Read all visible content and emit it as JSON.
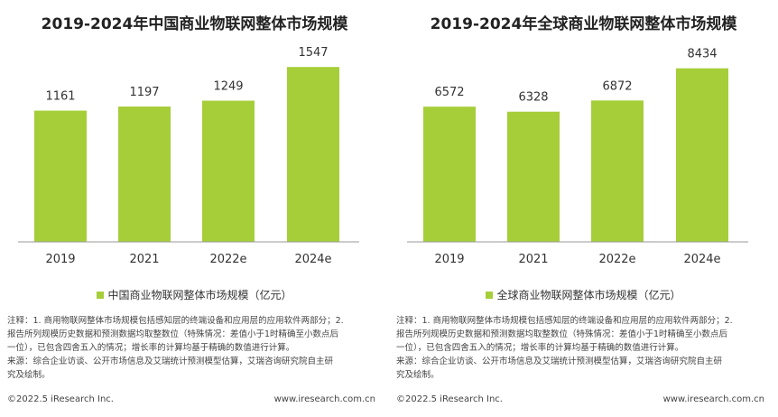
{
  "charts": [
    {
      "title": "2019-2024年中国商业物联网整体市场规模",
      "legend": "中国商业物联网整体市场规模（亿元）",
      "note_lines": [
        "注释：1. 商用物联网整体市场规模包括感知层的终端设备和应用层的应用软件两部分；2.",
        "报告所列规模历史数据和预测数据均取整数位（特殊情况：差值小于1时精确至小数点后",
        "一位），已包含四舍五入的情况；增长率的计算均基于精确的数值进行计算。",
        "来源：综合企业访谈、公开市场信息及艾瑞统计预测模型估算，艾瑞咨询研究院自主研",
        "究及绘制。"
      ],
      "footer": {
        "copyright": "©2022.5 iResearch Inc.",
        "website": "www.iresearch.com.cn"
      }
    },
    {
      "title": "2019-2024年全球商业物联网整体市场规模",
      "legend": "全球商业物联网整体市场规模（亿元）",
      "note_lines": [
        "注释：1. 商用物联网整体市场规模包括感知层的终端设备和应用层的应用软件两部分；2.",
        "报告所列规模历史数据和预测数据均取整数位（特殊情况：差值小于1时精确至小数点后",
        "一位），已包含四舍五入的情况；增长率的计算均基于精确的数值进行计算。",
        "来源：综合企业访谈、公开市场信息及艾瑞统计预测模型估算，艾瑞咨询研究院自主研",
        "究及绘制。"
      ],
      "footer": {
        "copyright": "©2022.5 iResearch Inc.",
        "website": "www.iresearch.com.cn"
      }
    }
  ],
  "chart_data": [
    {
      "type": "bar",
      "title": "2019-2024年中国商业物联网整体市场规模",
      "categories": [
        "2019",
        "2021",
        "2022e",
        "2024e"
      ],
      "series": [
        {
          "name": "中国商业物联网整体市场规模（亿元）",
          "values": [
            1161,
            1197,
            1249,
            1547
          ]
        }
      ],
      "ylim": [
        0,
        1820
      ],
      "grid": false,
      "legend_position": "bottom",
      "bar_color": "#a6ce39"
    },
    {
      "type": "bar",
      "title": "2019-2024年全球商业物联网整体市场规模",
      "categories": [
        "2019",
        "2021",
        "2022e",
        "2024e"
      ],
      "series": [
        {
          "name": "全球商业物联网整体市场规模（亿元）",
          "values": [
            6572,
            6328,
            6872,
            8434
          ]
        }
      ],
      "ylim": [
        0,
        10000
      ],
      "grid": false,
      "legend_position": "bottom",
      "bar_color": "#a6ce39"
    }
  ]
}
